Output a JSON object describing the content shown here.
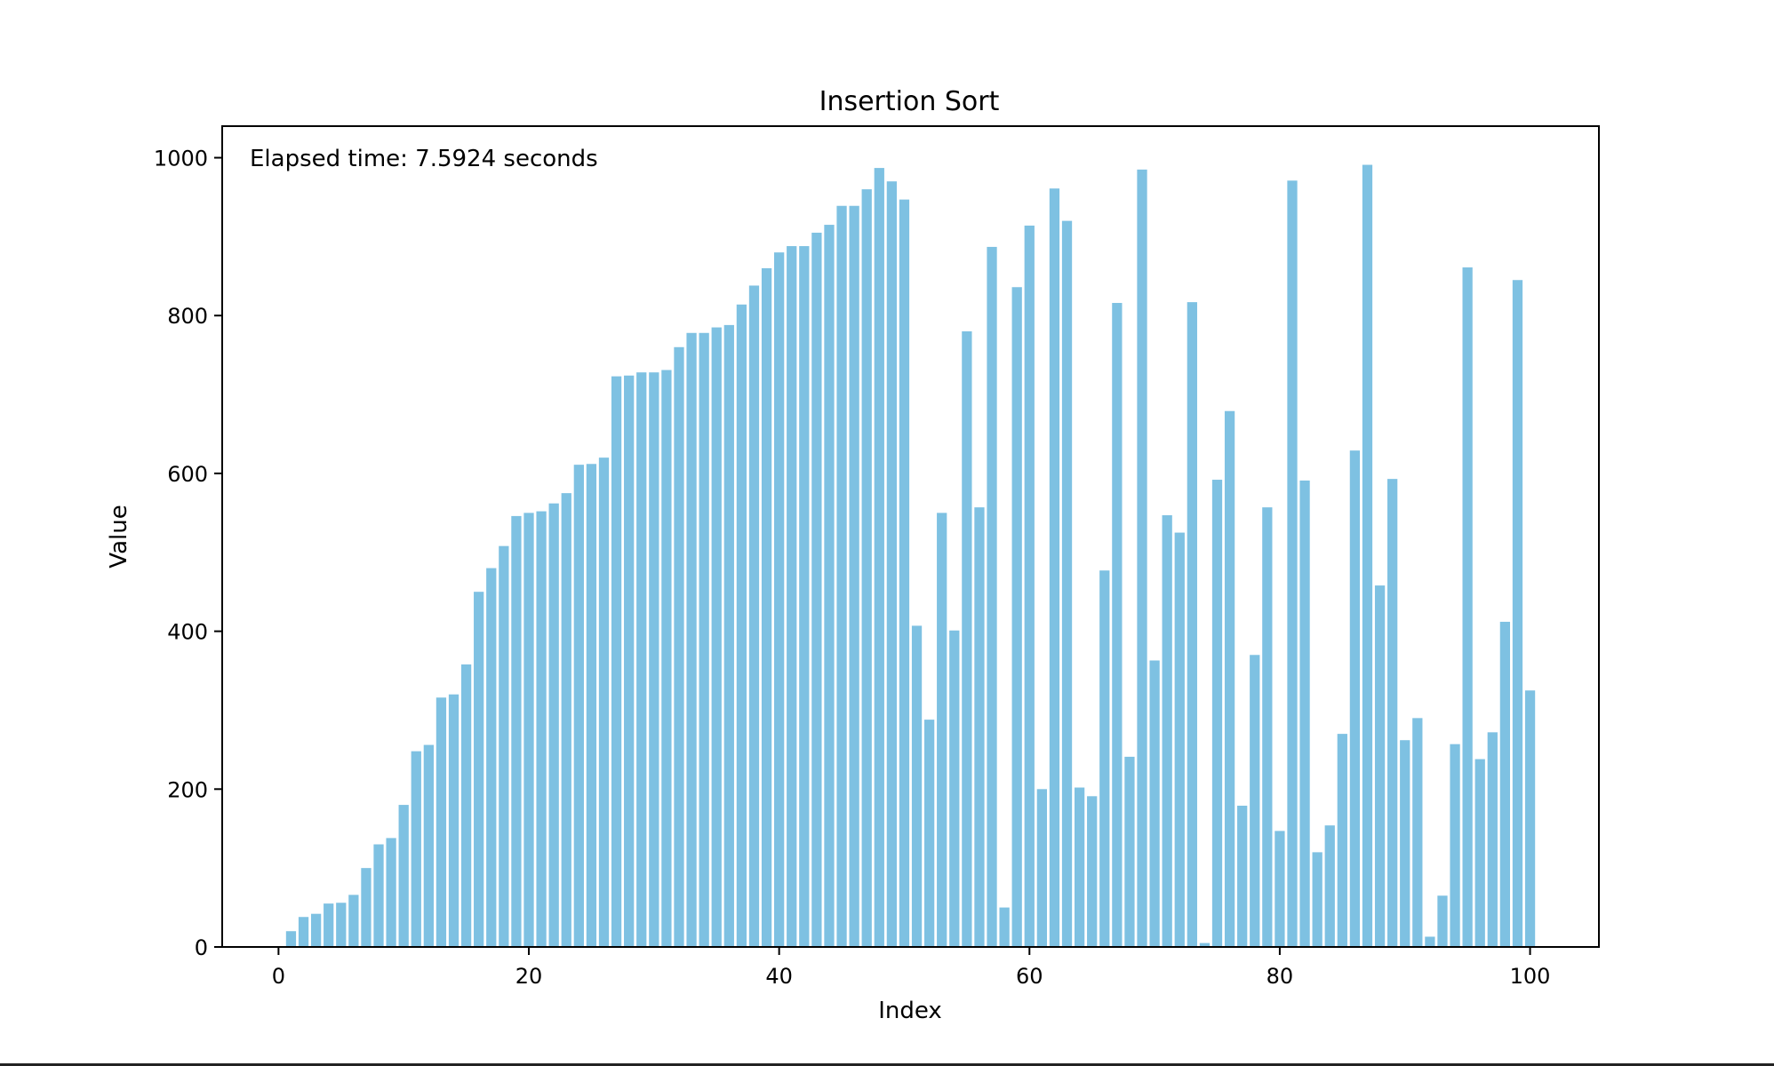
{
  "chart_data": {
    "type": "bar",
    "title": "Insertion Sort",
    "xlabel": "Index",
    "ylabel": "Value",
    "annotation": "Elapsed time: 7.5924 seconds",
    "xlim": [
      -4.5,
      105.5
    ],
    "ylim": [
      0,
      1040
    ],
    "x_ticks": [
      0,
      20,
      40,
      60,
      80,
      100
    ],
    "y_ticks": [
      0,
      200,
      400,
      600,
      800,
      1000
    ],
    "grid": false,
    "bar_color": "#7ec1e2",
    "x": [
      0,
      1,
      2,
      3,
      4,
      5,
      6,
      7,
      8,
      9,
      10,
      11,
      12,
      13,
      14,
      15,
      16,
      17,
      18,
      19,
      20,
      21,
      22,
      23,
      24,
      25,
      26,
      27,
      28,
      29,
      30,
      31,
      32,
      33,
      34,
      35,
      36,
      37,
      38,
      39,
      40,
      41,
      42,
      43,
      44,
      45,
      46,
      47,
      48,
      49,
      50,
      51,
      52,
      53,
      54,
      55,
      56,
      57,
      58,
      59,
      60,
      61,
      62,
      63,
      64,
      65,
      66,
      67,
      68,
      69,
      70,
      71,
      72,
      73,
      74,
      75,
      76,
      77,
      78,
      79,
      80,
      81,
      82,
      83,
      84,
      85,
      86,
      87,
      88,
      89,
      90,
      91,
      92,
      93,
      94,
      95,
      96,
      97,
      98,
      99,
      100
    ],
    "values": [
      0,
      20,
      38,
      42,
      55,
      56,
      66,
      100,
      130,
      138,
      180,
      248,
      256,
      316,
      320,
      358,
      450,
      480,
      508,
      546,
      550,
      552,
      562,
      575,
      611,
      612,
      620,
      723,
      724,
      728,
      728,
      731,
      760,
      778,
      778,
      785,
      788,
      814,
      838,
      860,
      880,
      888,
      888,
      905,
      915,
      939,
      939,
      960,
      987,
      970,
      947,
      407,
      288,
      550,
      401,
      780,
      557,
      887,
      50,
      836,
      914,
      200,
      961,
      920,
      202,
      191,
      477,
      816,
      241,
      985,
      363,
      547,
      525,
      817,
      5,
      592,
      679,
      179,
      370,
      557,
      147,
      971,
      591,
      120,
      154,
      270,
      629,
      991,
      458,
      593,
      262,
      290,
      13,
      65,
      257,
      861,
      238,
      272,
      412,
      845,
      325
    ]
  }
}
